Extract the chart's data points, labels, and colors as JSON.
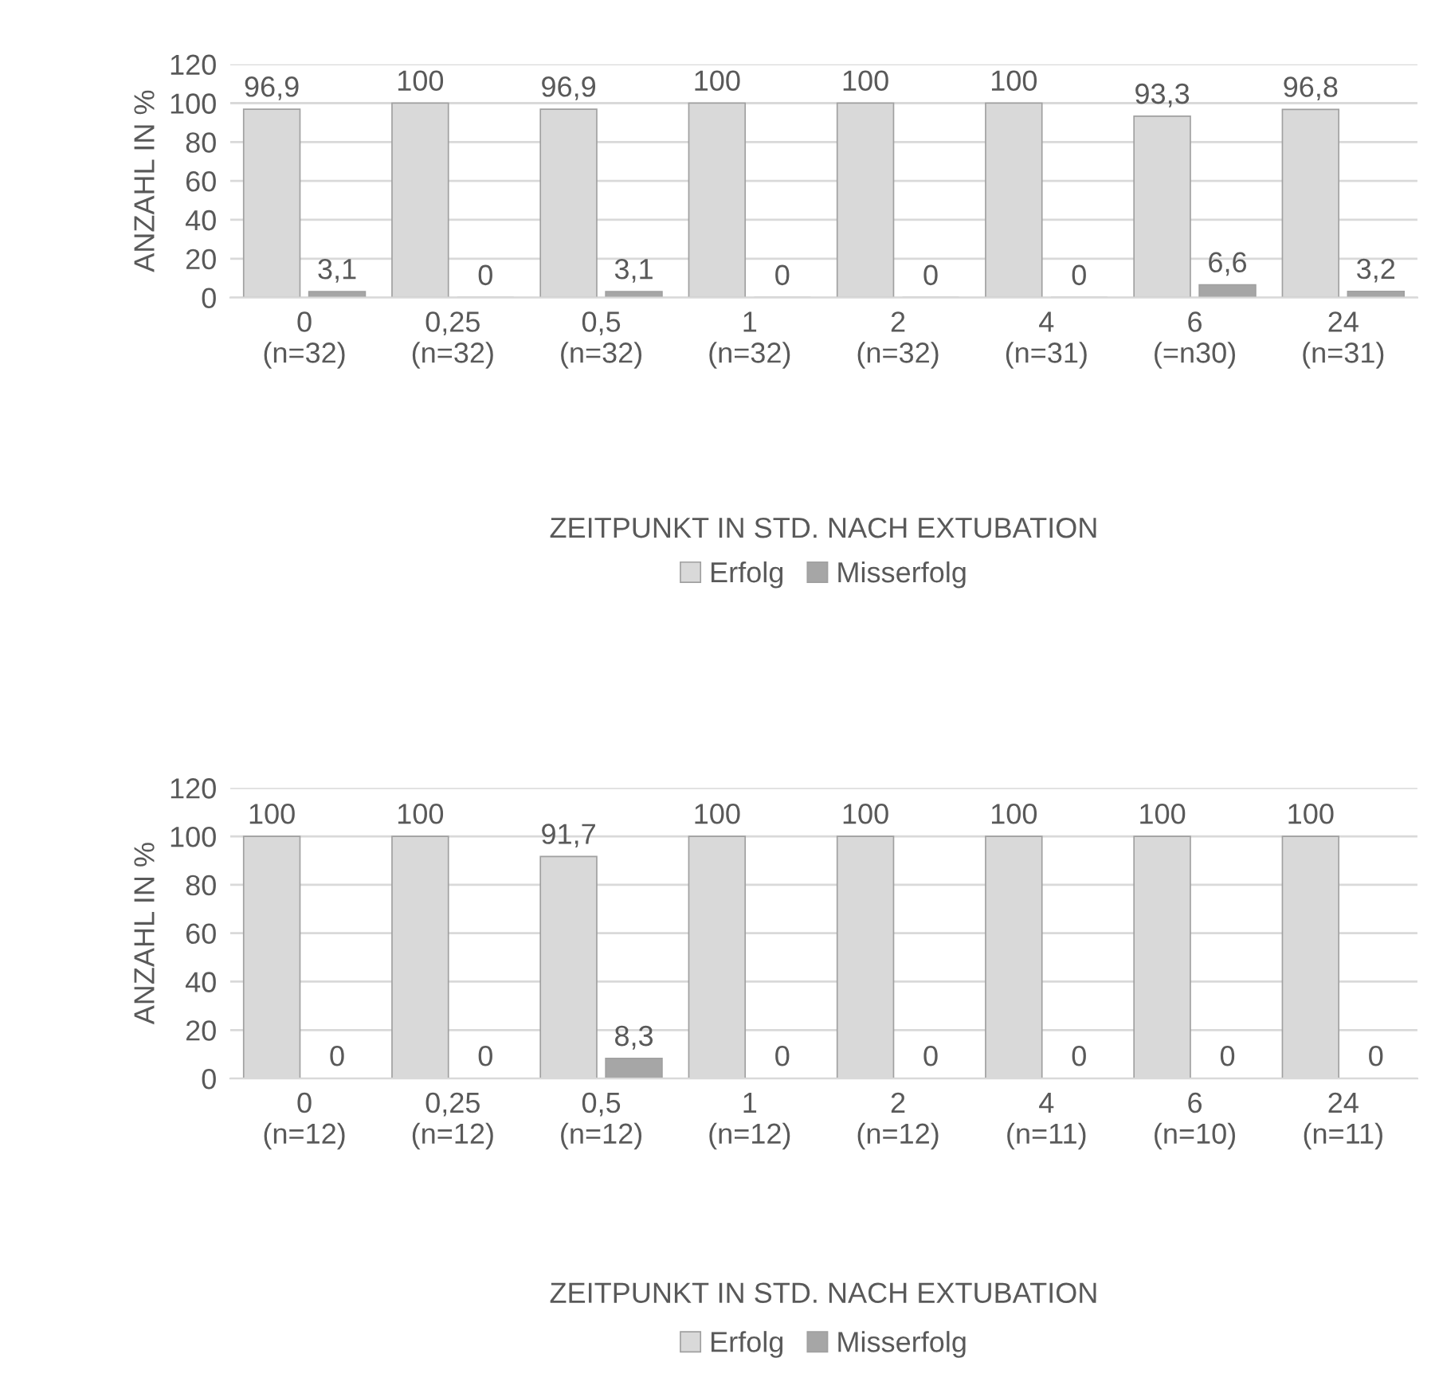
{
  "chart_data": [
    {
      "type": "bar",
      "xlabel": "ZEITPUNKT IN STD. NACH EXTUBATION",
      "ylabel": "ANZAHL IN %",
      "categories": [
        "0\n(n=32)",
        "0,25\n(n=32)",
        "0,5\n(n=32)",
        "1\n(n=32)",
        "2\n(n=32)",
        "4\n(n=31)",
        "6\n(=n30)",
        "24\n(n=31)"
      ],
      "series": [
        {
          "name": "Erfolg",
          "color": "#d9d9d9",
          "values": [
            96.9,
            100,
            96.9,
            100,
            100,
            100,
            93.3,
            96.8
          ],
          "value_labels": [
            "96,9",
            "100",
            "96,9",
            "100",
            "100",
            "100",
            "93,3",
            "96,8"
          ]
        },
        {
          "name": "Misserfolg",
          "color": "#a6a6a6",
          "values": [
            3.1,
            0,
            3.1,
            0,
            0,
            0,
            6.6,
            3.2
          ],
          "value_labels": [
            "3,1",
            "0",
            "3,1",
            "0",
            "0",
            "0",
            "6,6",
            "3,2"
          ]
        }
      ],
      "ylim": [
        0,
        120
      ],
      "yticks": [
        0,
        20,
        40,
        60,
        80,
        100,
        120
      ],
      "grid": "y",
      "legend": "bottom"
    },
    {
      "type": "bar",
      "xlabel": "ZEITPUNKT IN STD. NACH EXTUBATION",
      "ylabel": "ANZAHL IN %",
      "categories": [
        "0\n(n=12)",
        "0,25\n(n=12)",
        "0,5\n(n=12)",
        "1\n(n=12)",
        "2\n(n=12)",
        "4\n(n=11)",
        "6\n(n=10)",
        "24\n(n=11)"
      ],
      "series": [
        {
          "name": "Erfolg",
          "color": "#d9d9d9",
          "values": [
            100,
            100,
            91.7,
            100,
            100,
            100,
            100,
            100
          ],
          "value_labels": [
            "100",
            "100",
            "91,7",
            "100",
            "100",
            "100",
            "100",
            "100"
          ]
        },
        {
          "name": "Misserfolg",
          "color": "#a6a6a6",
          "values": [
            0,
            0,
            8.3,
            0,
            0,
            0,
            0,
            0
          ],
          "value_labels": [
            "0",
            "0",
            "8,3",
            "0",
            "0",
            "0",
            "0",
            "0"
          ]
        }
      ],
      "ylim": [
        0,
        120
      ],
      "yticks": [
        0,
        20,
        40,
        60,
        80,
        100,
        120
      ],
      "grid": "y",
      "legend": "bottom"
    }
  ]
}
